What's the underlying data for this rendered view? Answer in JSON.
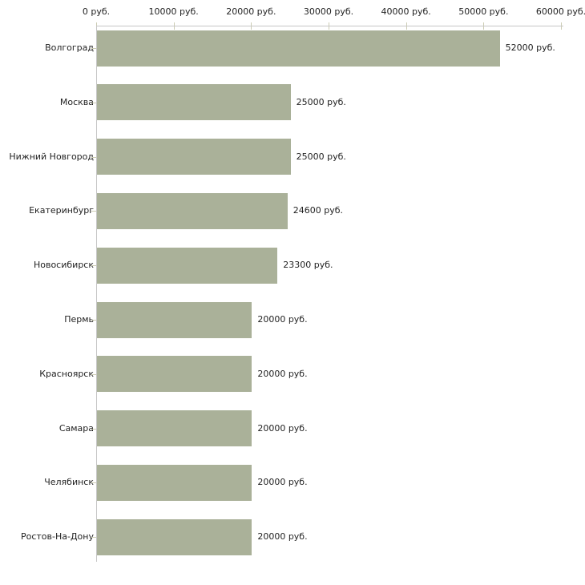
{
  "chart_data": {
    "type": "bar",
    "orientation": "horizontal",
    "title": "",
    "xlabel": "",
    "ylabel": "",
    "categories": [
      "Волгоград",
      "Москва",
      "Нижний Новгород",
      "Екатеринбург",
      "Новосибирск",
      "Пермь",
      "Красноярск",
      "Самара",
      "Челябинск",
      "Ростов-На-Дону"
    ],
    "values": [
      52000,
      25000,
      25000,
      24600,
      23300,
      20000,
      20000,
      20000,
      20000,
      20000
    ],
    "value_labels": [
      "52000 руб.",
      "25000 руб.",
      "25000 руб.",
      "24600 руб.",
      "23300 руб.",
      "20000 руб.",
      "20000 руб.",
      "20000 руб.",
      "20000 руб.",
      "20000 руб."
    ],
    "x_axis": {
      "position": "top",
      "range": [
        0,
        60000
      ],
      "ticks": [
        0,
        10000,
        20000,
        30000,
        40000,
        50000,
        60000
      ],
      "tick_labels": [
        "0 руб.",
        "10000 руб.",
        "20000 руб.",
        "30000 руб.",
        "40000 руб.",
        "50000 руб.",
        "60000 руб."
      ],
      "unit": "руб."
    },
    "grid": false,
    "legend": false,
    "bar_color": "#aab199",
    "axis_line_color": "#c6c6c6",
    "tick_color": "#ccccb3",
    "text_color": "#222222",
    "background_color": "#ffffff"
  }
}
